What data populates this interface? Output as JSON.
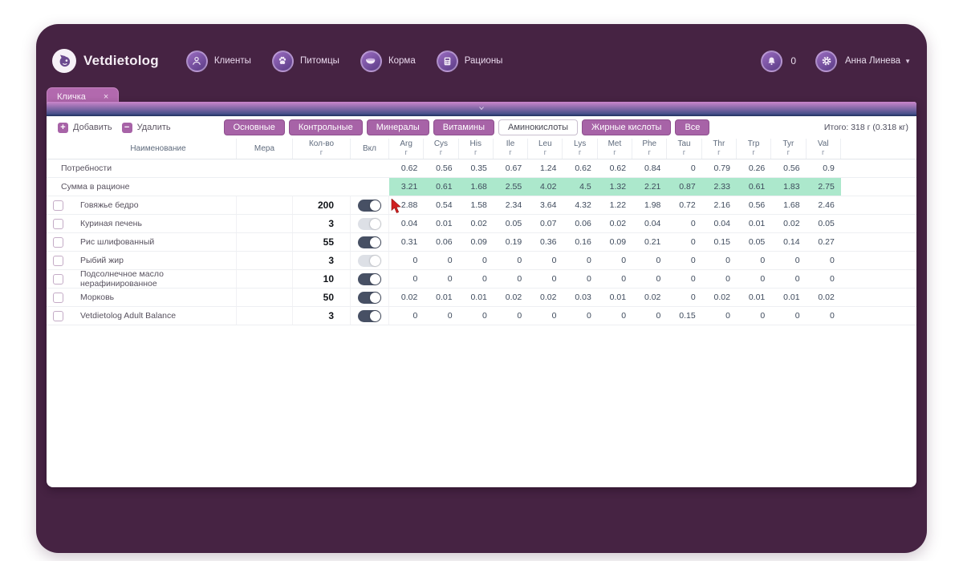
{
  "header": {
    "logo_text": "Vetdietolog",
    "nav_items": [
      {
        "label": "Клиенты",
        "icon": "person-icon"
      },
      {
        "label": "Питомцы",
        "icon": "paw-icon"
      },
      {
        "label": "Корма",
        "icon": "bowl-icon"
      },
      {
        "label": "Рационы",
        "icon": "calculator-icon"
      }
    ],
    "notifications_count": "0",
    "user_name": "Анна Линева"
  },
  "tab": {
    "label": "Кличка",
    "close_glyph": "×"
  },
  "panel": {
    "toolbar": {
      "add_label": "Добавить",
      "delete_label": "Удалить",
      "filters": [
        {
          "label": "Основные",
          "active": false
        },
        {
          "label": "Контрольные",
          "active": false
        },
        {
          "label": "Минералы",
          "active": false
        },
        {
          "label": "Витамины",
          "active": false
        },
        {
          "label": "Аминокислоты",
          "active": true
        },
        {
          "label": "Жирные кислоты",
          "active": false
        },
        {
          "label": "Все",
          "active": false
        }
      ],
      "total_text": "Итого: 318 г (0.318 кг)"
    },
    "table": {
      "columns": {
        "name": "Наименование",
        "measure": "Мера",
        "qty": "Кол-во",
        "qty_unit": "г",
        "enabled": "Вкл"
      },
      "nutrient_columns": [
        "Arg",
        "Cys",
        "His",
        "Ile",
        "Leu",
        "Lys",
        "Met",
        "Phe",
        "Tau",
        "Thr",
        "Trp",
        "Tyr",
        "Val"
      ],
      "nutrient_unit": "г",
      "rows": [
        {
          "type": "requirements",
          "label": "Потребности",
          "values": [
            "0.62",
            "0.56",
            "0.35",
            "0.67",
            "1.24",
            "0.62",
            "0.62",
            "0.84",
            "0",
            "0.79",
            "0.26",
            "0.56",
            "0.9"
          ]
        },
        {
          "type": "sum",
          "label": "Сумма в рационе",
          "values": [
            "3.21",
            "0.61",
            "1.68",
            "2.55",
            "4.02",
            "4.5",
            "1.32",
            "2.21",
            "0.87",
            "2.33",
            "0.61",
            "1.83",
            "2.75"
          ]
        },
        {
          "type": "ingredient",
          "name": "Говяжье бедро",
          "measure": "",
          "qty": "200",
          "enabled": true,
          "values": [
            "2.88",
            "0.54",
            "1.58",
            "2.34",
            "3.64",
            "4.32",
            "1.22",
            "1.98",
            "0.72",
            "2.16",
            "0.56",
            "1.68",
            "2.46"
          ]
        },
        {
          "type": "ingredient",
          "name": "Куриная печень",
          "measure": "",
          "qty": "3",
          "enabled": false,
          "values": [
            "0.04",
            "0.01",
            "0.02",
            "0.05",
            "0.07",
            "0.06",
            "0.02",
            "0.04",
            "0",
            "0.04",
            "0.01",
            "0.02",
            "0.05"
          ]
        },
        {
          "type": "ingredient",
          "name": "Рис шлифованный",
          "measure": "",
          "qty": "55",
          "enabled": true,
          "values": [
            "0.31",
            "0.06",
            "0.09",
            "0.19",
            "0.36",
            "0.16",
            "0.09",
            "0.21",
            "0",
            "0.15",
            "0.05",
            "0.14",
            "0.27"
          ]
        },
        {
          "type": "ingredient",
          "name": "Рыбий жир",
          "measure": "",
          "qty": "3",
          "enabled": false,
          "values": [
            "0",
            "0",
            "0",
            "0",
            "0",
            "0",
            "0",
            "0",
            "0",
            "0",
            "0",
            "0",
            "0"
          ]
        },
        {
          "type": "ingredient",
          "name": "Подсолнечное масло нерафинированное",
          "measure": "",
          "qty": "10",
          "enabled": true,
          "values": [
            "0",
            "0",
            "0",
            "0",
            "0",
            "0",
            "0",
            "0",
            "0",
            "0",
            "0",
            "0",
            "0"
          ]
        },
        {
          "type": "ingredient",
          "name": "Морковь",
          "measure": "",
          "qty": "50",
          "enabled": true,
          "values": [
            "0.02",
            "0.01",
            "0.01",
            "0.02",
            "0.02",
            "0.03",
            "0.01",
            "0.02",
            "0",
            "0.02",
            "0.01",
            "0.01",
            "0.02"
          ]
        },
        {
          "type": "ingredient",
          "name": "Vetdietolog Adult Balance",
          "measure": "",
          "qty": "3",
          "enabled": true,
          "values": [
            "0",
            "0",
            "0",
            "0",
            "0",
            "0",
            "0",
            "0",
            "0.15",
            "0",
            "0",
            "0",
            "0"
          ]
        }
      ]
    }
  },
  "colors": {
    "window_bg": "#462343",
    "tab_bg": "#b269ae",
    "accent": "#a763a7",
    "accent_dark": "#8e4f8e",
    "grad_top": "#cb86cb",
    "grad_bottom": "#3f4c86",
    "grad_line": "#2c3a6b",
    "sum_bg": "#ace8cc",
    "toggle_on": "#475064",
    "cursor_red": "#d01f1f"
  }
}
